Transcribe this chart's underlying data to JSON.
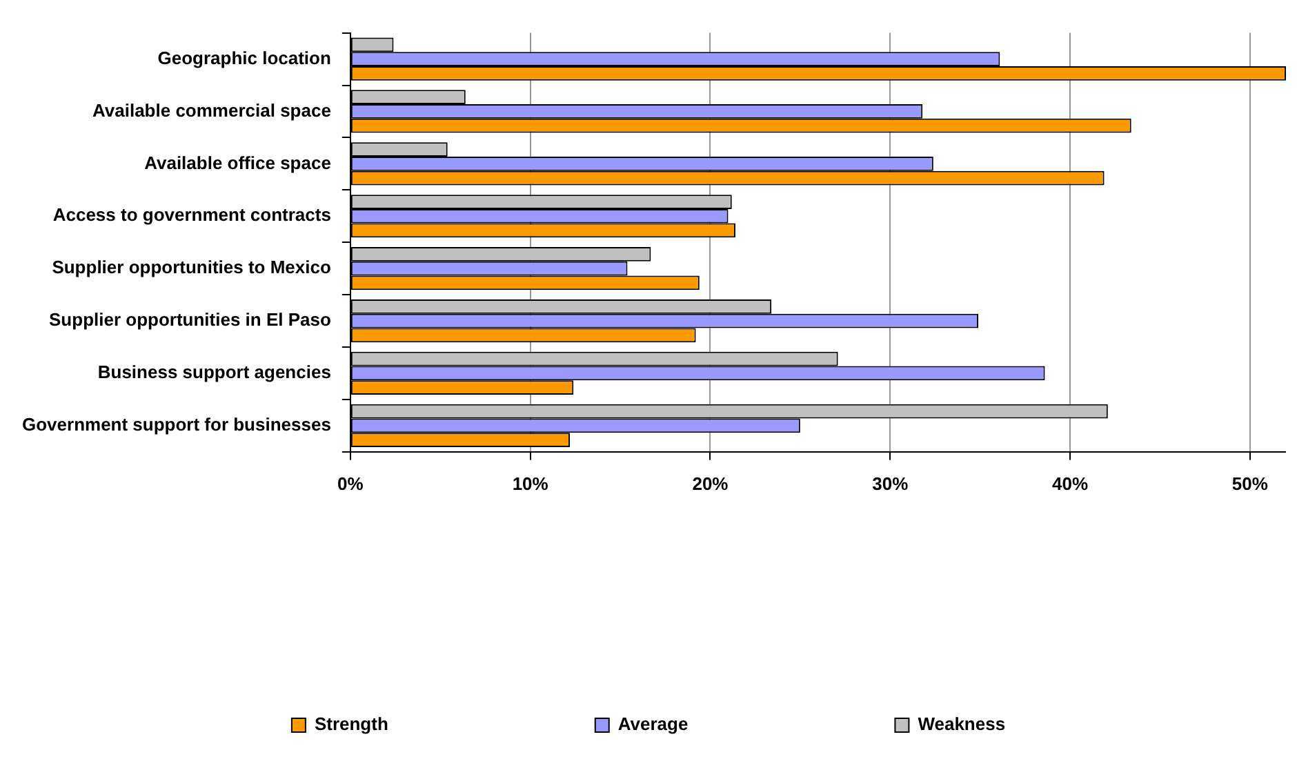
{
  "chart_data": {
    "type": "bar",
    "orientation": "horizontal",
    "categories": [
      "Geographic location",
      "Available commercial space",
      "Available office space",
      "Access to government contracts",
      "Supplier opportunities to Mexico",
      "Supplier opportunities in El Paso",
      "Business support agencies",
      "Government support for businesses"
    ],
    "series": [
      {
        "name": "Strength",
        "color": "#ff9900",
        "values": [
          52,
          43.4,
          41.9,
          21.4,
          19.4,
          19.2,
          12.4,
          12.2
        ]
      },
      {
        "name": "Average",
        "color": "#9999ff",
        "values": [
          36.1,
          31.8,
          32.4,
          21.0,
          15.4,
          34.9,
          38.6,
          25.0
        ]
      },
      {
        "name": "Weakness",
        "color": "#c0c0c0",
        "values": [
          2.4,
          6.4,
          5.4,
          21.2,
          16.7,
          23.4,
          27.1,
          42.1
        ]
      }
    ],
    "xlim": [
      0,
      52
    ],
    "xticks": [
      {
        "value": 0,
        "label": "0%"
      },
      {
        "value": 10,
        "label": "10%"
      },
      {
        "value": 20,
        "label": "20%"
      },
      {
        "value": 30,
        "label": "30%"
      },
      {
        "value": 40,
        "label": "40%"
      },
      {
        "value": 50,
        "label": "50%"
      }
    ],
    "grid": "x",
    "legend": "bottom"
  }
}
